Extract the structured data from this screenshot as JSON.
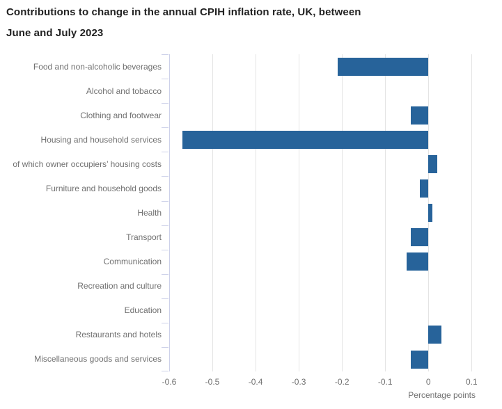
{
  "title": {
    "line1": "Contributions to change in the annual CPIH inflation rate, UK, between",
    "line2": "June and July 2023"
  },
  "chart_data": {
    "type": "bar",
    "orientation": "horizontal",
    "title": "Contributions to change in the annual CPIH inflation rate, UK, between June and July 2023",
    "categories": [
      "Food and non-alcoholic beverages",
      "Alcohol and tobacco",
      "Clothing and footwear",
      "Housing and household services",
      "of which owner occupiers’ housing costs",
      "Furniture and household goods",
      "Health",
      "Transport",
      "Communication",
      "Recreation and culture",
      "Education",
      "Restaurants and hotels",
      "Miscellaneous goods and services"
    ],
    "values": [
      -0.21,
      0,
      -0.04,
      -0.57,
      0.02,
      -0.02,
      0.01,
      -0.04,
      -0.05,
      0,
      0,
      0.03,
      -0.04
    ],
    "xlabel": "Percentage points",
    "ylabel": "",
    "xlim": [
      -0.6,
      0.135
    ],
    "xticks": [
      -0.6,
      -0.5,
      -0.4,
      -0.3,
      -0.2,
      -0.1,
      0,
      0.1
    ],
    "xtick_labels": [
      "-0.6",
      "-0.5",
      "-0.4",
      "-0.3",
      "-0.2",
      "-0.1",
      "0",
      "0.1"
    ],
    "grid": true,
    "legend": false,
    "bar_color": "#27639a"
  },
  "colors": {
    "bar": "#27639a",
    "title_text": "#222222",
    "axis_text": "#707070",
    "axis_line": "#cdd1e9",
    "gridline": "#e4e4e4",
    "background": "#ffffff"
  }
}
